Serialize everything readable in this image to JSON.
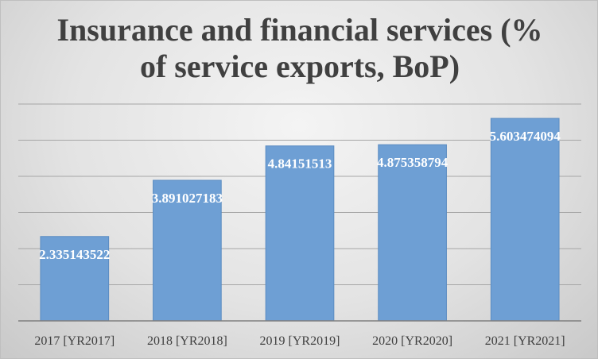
{
  "chart_data": {
    "type": "bar",
    "title_lines": [
      "Insurance and financial services (%",
      "of service exports, BoP)"
    ],
    "categories": [
      "2017 [YR2017]",
      "2018 [YR2018]",
      "2019 [YR2019]",
      "2020 [YR2020]",
      "2021 [YR2021]"
    ],
    "values": [
      2.335143522,
      3.891027183,
      4.84151513,
      4.875358794,
      5.603474094
    ],
    "value_labels": [
      "2.335143522",
      "3.891027183",
      "4.84151513",
      "4.875358794",
      "5.603474094"
    ],
    "ylim": [
      0,
      6
    ],
    "gridlines": true,
    "bar_color": "#6e9fd4",
    "bar_edge_color": "#5b8cc2"
  }
}
